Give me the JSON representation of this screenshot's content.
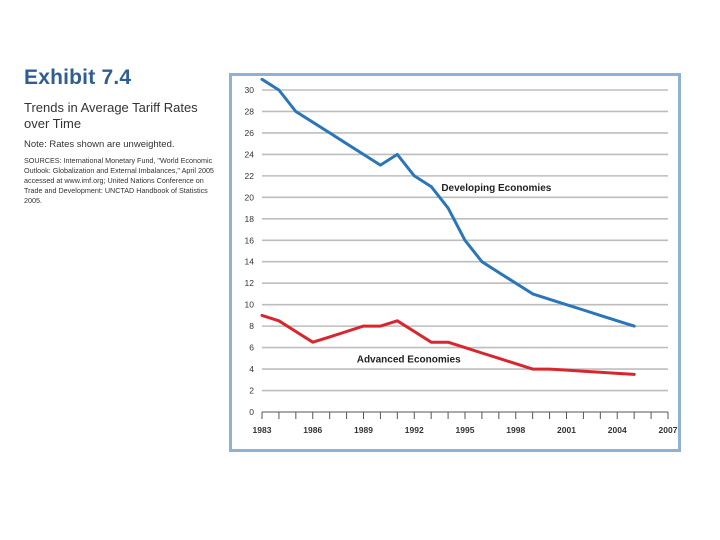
{
  "exhibit": {
    "title": "Exhibit 7.4",
    "subtitle": "Trends in Average Tariff Rates over Time",
    "note": "Note: Rates shown are unweighted.",
    "sources": "SOURCES: International Monetary Fund, \"World Economic Outlook: Globalization and External Imbalances,\" April 2005 accessed at www.imf.org; United Nations Conference on Trade and Development: UNCTAD Handbook of Statistics 2005."
  },
  "colors": {
    "title": "#2f5e94",
    "developing": "#2a76b8",
    "advanced": "#d9262e",
    "grid": "#bdbdbd",
    "frame": "#8eb2d6"
  },
  "chart_data": {
    "type": "line",
    "title": "",
    "xlabel": "",
    "ylabel": "",
    "xlim": [
      1983,
      2007
    ],
    "ylim": [
      0,
      30
    ],
    "x_ticks": [
      1983,
      1986,
      1989,
      1992,
      1995,
      1998,
      2001,
      2004,
      2007
    ],
    "y_ticks": [
      0,
      2,
      4,
      6,
      8,
      10,
      12,
      14,
      16,
      18,
      20,
      22,
      24,
      26,
      28,
      30
    ],
    "grid": true,
    "series": [
      {
        "name": "Developing Economies",
        "color": "#2a76b8",
        "x": [
          1983,
          1984,
          1985,
          1986,
          1987,
          1988,
          1989,
          1990,
          1991,
          1992,
          1993,
          1994,
          1995,
          1996,
          1997,
          1998,
          1999,
          2000,
          2001,
          2002,
          2003,
          2004,
          2005
        ],
        "y": [
          31,
          30,
          28,
          27,
          26,
          25,
          24,
          23,
          24,
          22,
          21,
          19,
          16,
          14,
          13,
          12,
          11,
          10.5,
          10,
          9.5,
          9,
          8.5,
          8
        ]
      },
      {
        "name": "Advanced Economies",
        "color": "#d9262e",
        "x": [
          1983,
          1984,
          1985,
          1986,
          1987,
          1988,
          1989,
          1990,
          1991,
          1992,
          1993,
          1994,
          1995,
          1996,
          1997,
          1998,
          1999,
          2000,
          2001,
          2002,
          2003,
          2004,
          2005
        ],
        "y": [
          9,
          8.5,
          7.5,
          6.5,
          7,
          7.5,
          8,
          8,
          8.5,
          7.5,
          6.5,
          6.5,
          6,
          5.5,
          5,
          4.5,
          4,
          4,
          3.9,
          3.8,
          3.7,
          3.6,
          3.5
        ]
      }
    ]
  }
}
